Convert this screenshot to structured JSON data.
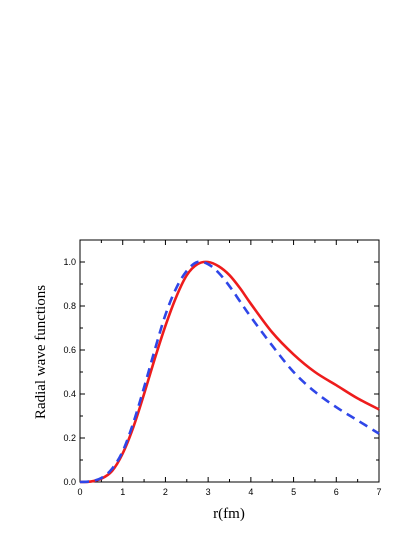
{
  "chart_data": {
    "type": "line",
    "title": "",
    "xlabel": "r(fm)",
    "ylabel": "Radial wave functions",
    "xlim": [
      0,
      7
    ],
    "ylim": [
      0.0,
      1.1
    ],
    "xticks": [
      "0",
      "1",
      "2",
      "3",
      "4",
      "5",
      "6",
      "7"
    ],
    "yticks": [
      "0.0",
      "0.2",
      "0.4",
      "0.6",
      "0.8",
      "1.0"
    ],
    "grid": false,
    "series": [
      {
        "style": "solid",
        "color": "#ee1c1c",
        "x": [
          0.0,
          0.25,
          0.5,
          0.75,
          1.0,
          1.25,
          1.5,
          1.75,
          2.0,
          2.25,
          2.5,
          2.75,
          3.0,
          3.25,
          3.5,
          3.75,
          4.0,
          4.5,
          5.0,
          5.5,
          6.0,
          6.5,
          7.0
        ],
        "y": [
          0.0,
          0.002,
          0.015,
          0.05,
          0.13,
          0.25,
          0.4,
          0.56,
          0.71,
          0.84,
          0.94,
          0.99,
          1.0,
          0.98,
          0.94,
          0.88,
          0.81,
          0.68,
          0.58,
          0.5,
          0.44,
          0.38,
          0.33
        ]
      },
      {
        "style": "dashed",
        "color": "#2f46e8",
        "x": [
          0.0,
          0.25,
          0.5,
          0.75,
          1.0,
          1.25,
          1.5,
          1.75,
          2.0,
          2.25,
          2.5,
          2.75,
          3.0,
          3.25,
          3.5,
          3.75,
          4.0,
          4.5,
          5.0,
          5.5,
          6.0,
          6.5,
          7.0
        ],
        "y": [
          0.0,
          0.003,
          0.018,
          0.06,
          0.14,
          0.27,
          0.43,
          0.6,
          0.76,
          0.88,
          0.96,
          1.0,
          0.99,
          0.95,
          0.89,
          0.82,
          0.75,
          0.62,
          0.5,
          0.41,
          0.34,
          0.28,
          0.22
        ]
      }
    ]
  }
}
